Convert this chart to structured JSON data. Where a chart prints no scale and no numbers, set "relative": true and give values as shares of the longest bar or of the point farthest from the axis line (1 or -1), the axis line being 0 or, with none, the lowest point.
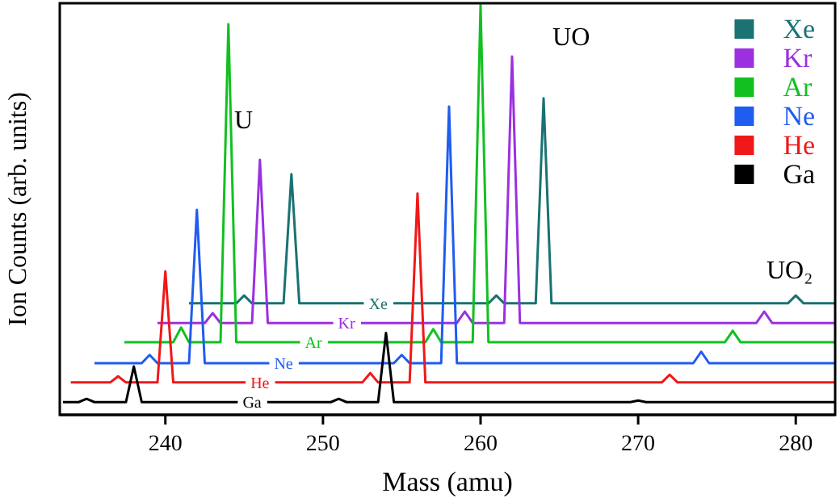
{
  "chart_data": {
    "type": "line",
    "relative": true,
    "xlabel": "Mass (amu)",
    "ylabel": "Ion Counts (arb. units)",
    "xlim": [
      233.3,
      282.5
    ],
    "xticks": [
      240,
      250,
      260,
      270,
      280
    ],
    "legend": "top right",
    "grid": false,
    "annotations": [
      "U",
      "UO",
      "UO₂"
    ],
    "series": [
      {
        "name": "Xe",
        "color": "#1a7272",
        "x": [
          241.5,
          244.5,
          245,
          245.5,
          247.5,
          248,
          248.5,
          260.5,
          261,
          261.5,
          263.5,
          264,
          264.5,
          279.5,
          280,
          280.5,
          282.5
        ],
        "values": [
          0.272,
          0.272,
          0.291,
          0.272,
          0.272,
          0.587,
          0.272,
          0.272,
          0.291,
          0.272,
          0.272,
          0.772,
          0.272,
          0.272,
          0.291,
          0.272,
          0.272
        ]
      },
      {
        "name": "Kr",
        "color": "#9b30e0",
        "x": [
          239.5,
          242.5,
          243,
          243.5,
          245.5,
          246,
          246.5,
          258.5,
          259,
          259.5,
          261.5,
          262,
          262.5,
          277.5,
          278,
          278.5,
          282.5
        ],
        "values": [
          0.224,
          0.224,
          0.248,
          0.224,
          0.224,
          0.622,
          0.224,
          0.224,
          0.252,
          0.224,
          0.224,
          0.874,
          0.224,
          0.224,
          0.252,
          0.224,
          0.224
        ]
      },
      {
        "name": "Ar",
        "color": "#12c020",
        "x": [
          237.4,
          240.5,
          241,
          241.5,
          243.5,
          244,
          244.5,
          256.5,
          257,
          257.5,
          259.5,
          260,
          260.5,
          275.5,
          276,
          276.5,
          282.5
        ],
        "values": [
          0.177,
          0.177,
          0.213,
          0.177,
          0.177,
          0.953,
          0.177,
          0.177,
          0.209,
          0.177,
          0.177,
          1,
          0.177,
          0.177,
          0.205,
          0.177,
          0.177
        ]
      },
      {
        "name": "Ne",
        "color": "#1f5cf0",
        "x": [
          235.5,
          238.5,
          239,
          239.5,
          241.5,
          242,
          242.5,
          254.5,
          255,
          255.5,
          257.5,
          258,
          258.5,
          273.5,
          274,
          274.5,
          282.5
        ],
        "values": [
          0.126,
          0.126,
          0.146,
          0.126,
          0.126,
          0.5,
          0.126,
          0.126,
          0.146,
          0.126,
          0.126,
          0.752,
          0.126,
          0.126,
          0.154,
          0.126,
          0.126
        ]
      },
      {
        "name": "He",
        "color": "#f01818",
        "x": [
          234,
          236.5,
          237,
          237.5,
          239.5,
          240,
          240.5,
          252.5,
          253,
          253.5,
          255.5,
          256,
          256.5,
          271.5,
          272,
          272.5,
          282.5
        ],
        "values": [
          0.079,
          0.079,
          0.094,
          0.079,
          0.079,
          0.35,
          0.079,
          0.079,
          0.102,
          0.079,
          0.079,
          0.54,
          0.079,
          0.079,
          0.098,
          0.079,
          0.079
        ]
      },
      {
        "name": "Ga",
        "color": "#000000",
        "x": [
          233.5,
          234.5,
          235,
          235.5,
          237.5,
          238,
          238.5,
          250.5,
          251,
          251.5,
          253.5,
          254,
          254.5,
          269.5,
          270,
          270.5,
          282.5
        ],
        "values": [
          0.031,
          0.031,
          0.039,
          0.031,
          0.031,
          0.118,
          0.031,
          0.031,
          0.039,
          0.031,
          0.031,
          0.2,
          0.031,
          0.031,
          0.035,
          0.031,
          0.031
        ]
      }
    ]
  }
}
